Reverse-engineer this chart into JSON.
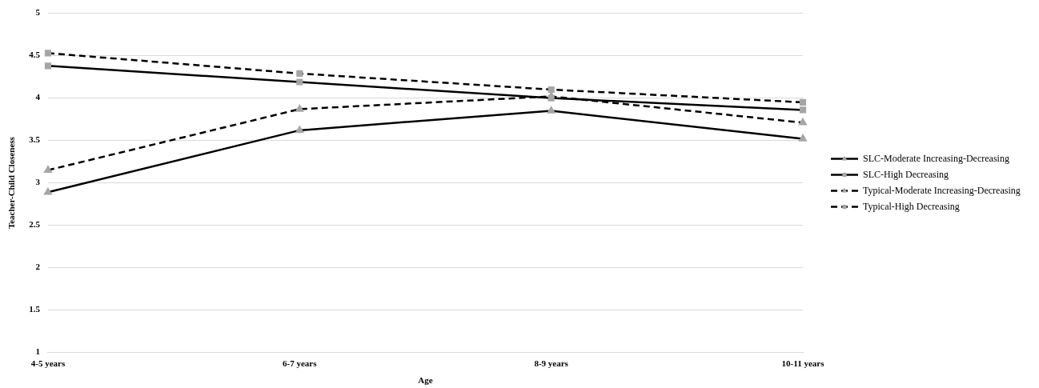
{
  "chart_data": {
    "type": "line",
    "xlabel": "Age",
    "ylabel": "Teacher-Child Closeness",
    "categories": [
      "4-5 years",
      "6-7 years",
      "8-9 years",
      "10-11 years"
    ],
    "series": [
      {
        "name": "SLC-Moderate Increasing-Decreasing",
        "color": "#000000",
        "marker": "triangle",
        "line_style": "solid",
        "values": [
          2.89,
          3.62,
          3.85,
          3.52
        ]
      },
      {
        "name": "SLC-High Decreasing",
        "color": "#000000",
        "marker": "square",
        "line_style": "solid",
        "values": [
          4.38,
          4.19,
          4.0,
          3.86
        ]
      },
      {
        "name": "Typical-Moderate Increasing-Decreasing",
        "color": "#000000",
        "marker": "triangle",
        "line_style": "dashed",
        "values": [
          3.15,
          3.87,
          4.02,
          3.71
        ]
      },
      {
        "name": "Typical-High Decreasing",
        "color": "#000000",
        "marker": "square",
        "line_style": "dashed",
        "values": [
          4.53,
          4.29,
          4.1,
          3.95
        ]
      }
    ],
    "ylim": [
      1,
      5
    ],
    "yticks": [
      1,
      1.5,
      2,
      2.5,
      3,
      3.5,
      4,
      4.5,
      5
    ],
    "grid": "y",
    "legend": "right"
  }
}
